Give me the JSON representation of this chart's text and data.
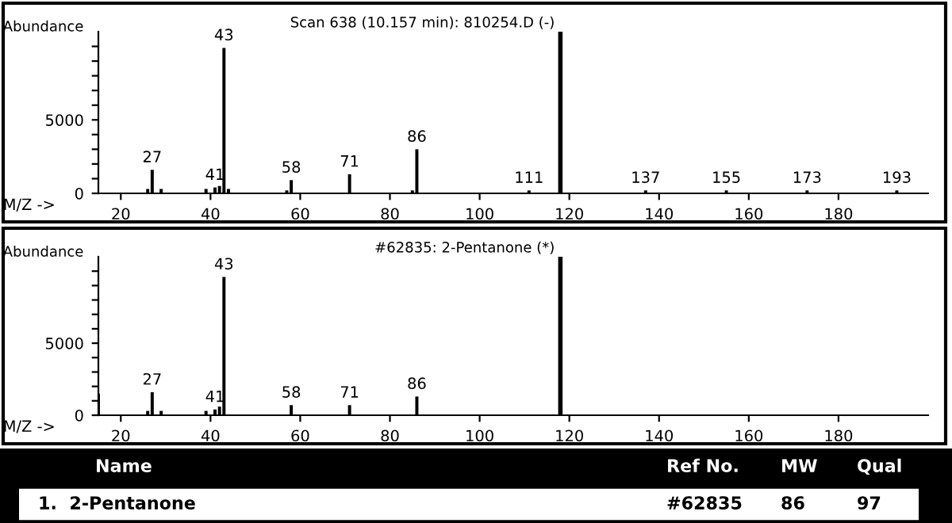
{
  "chart_data": [
    {
      "type": "bar",
      "title": "Scan 638 (10.157 min): 810254.D (-)",
      "ylabel": "Abundance",
      "xlabel": "M/Z ->",
      "x": [
        26,
        27,
        29,
        39,
        41,
        42,
        43,
        44,
        57,
        58,
        71,
        85,
        86,
        111,
        137,
        155,
        173,
        193
      ],
      "values": [
        300,
        1600,
        300,
        300,
        400,
        500,
        9900,
        300,
        200,
        900,
        1300,
        200,
        3000,
        200,
        200,
        200,
        200,
        200
      ],
      "color": "#000000",
      "xlim": [
        15,
        200
      ],
      "xticks": [
        20,
        40,
        60,
        80,
        100,
        120,
        140,
        160,
        180
      ],
      "ylim": [
        0,
        11000
      ],
      "yticks": [
        0,
        {
          "value": 1000,
          "label": null
        },
        {
          "value": 2000,
          "label": null
        },
        {
          "value": 3000,
          "label": null
        },
        {
          "value": 4000,
          "label": null
        },
        5000,
        {
          "value": 6000,
          "label": null
        },
        {
          "value": 7000,
          "label": null
        },
        {
          "value": 8000,
          "label": null
        },
        {
          "value": 9000,
          "label": null
        },
        {
          "value": 10000,
          "label": null
        }
      ],
      "annotations": [
        {
          "text": "27",
          "x": 27,
          "y": 1600
        },
        {
          "text": "41",
          "x": 41,
          "y": 400
        },
        {
          "text": "43",
          "x": 43,
          "y": 9900
        },
        {
          "text": "58",
          "x": 58,
          "y": 900
        },
        {
          "text": "71",
          "x": 71,
          "y": 1300
        },
        {
          "text": "86",
          "x": 86,
          "y": 3000
        },
        {
          "text": "111",
          "x": 111,
          "y": 200
        },
        {
          "text": "137",
          "x": 137,
          "y": 200
        },
        {
          "text": "155",
          "x": 155,
          "y": 200
        },
        {
          "text": "173",
          "x": 173,
          "y": 200
        },
        {
          "text": "193",
          "x": 193,
          "y": 200
        }
      ],
      "ref_lines": [
        {
          "axis": "x",
          "value": 118,
          "color": "#000000"
        }
      ],
      "grid": false
    },
    {
      "type": "bar",
      "title": "#62835: 2-Pentanone (*)",
      "ylabel": "Abundance",
      "xlabel": "M/Z ->",
      "x": [
        15,
        26,
        27,
        29,
        39,
        41,
        42,
        43,
        58,
        71,
        86
      ],
      "values": [
        1500,
        300,
        1600,
        300,
        300,
        400,
        600,
        9600,
        700,
        700,
        1300
      ],
      "color": "#000000",
      "xlim": [
        15,
        200
      ],
      "xticks": [
        20,
        40,
        60,
        80,
        100,
        120,
        140,
        160,
        180
      ],
      "ylim": [
        0,
        11000
      ],
      "yticks": [
        0,
        {
          "value": 1000,
          "label": null
        },
        {
          "value": 2000,
          "label": null
        },
        {
          "value": 3000,
          "label": null
        },
        {
          "value": 4000,
          "label": null
        },
        5000,
        {
          "value": 6000,
          "label": null
        },
        {
          "value": 7000,
          "label": null
        },
        {
          "value": 8000,
          "label": null
        },
        {
          "value": 9000,
          "label": null
        },
        {
          "value": 10000,
          "label": null
        }
      ],
      "annotations": [
        {
          "text": "27",
          "x": 27,
          "y": 1600
        },
        {
          "text": "41",
          "x": 41,
          "y": 400
        },
        {
          "text": "43",
          "x": 43,
          "y": 9600
        },
        {
          "text": "58",
          "x": 58,
          "y": 700
        },
        {
          "text": "71",
          "x": 71,
          "y": 700
        },
        {
          "text": "86",
          "x": 86,
          "y": 1300
        }
      ],
      "ref_lines": [
        {
          "axis": "x",
          "value": 118,
          "color": "#000000"
        }
      ],
      "grid": false
    },
    {
      "type": "other",
      "annotations": [
        "Name",
        "Ref No.",
        "MW",
        "Qual",
        "1.  2-Pentanone",
        "#62835",
        "86",
        "97"
      ]
    }
  ]
}
